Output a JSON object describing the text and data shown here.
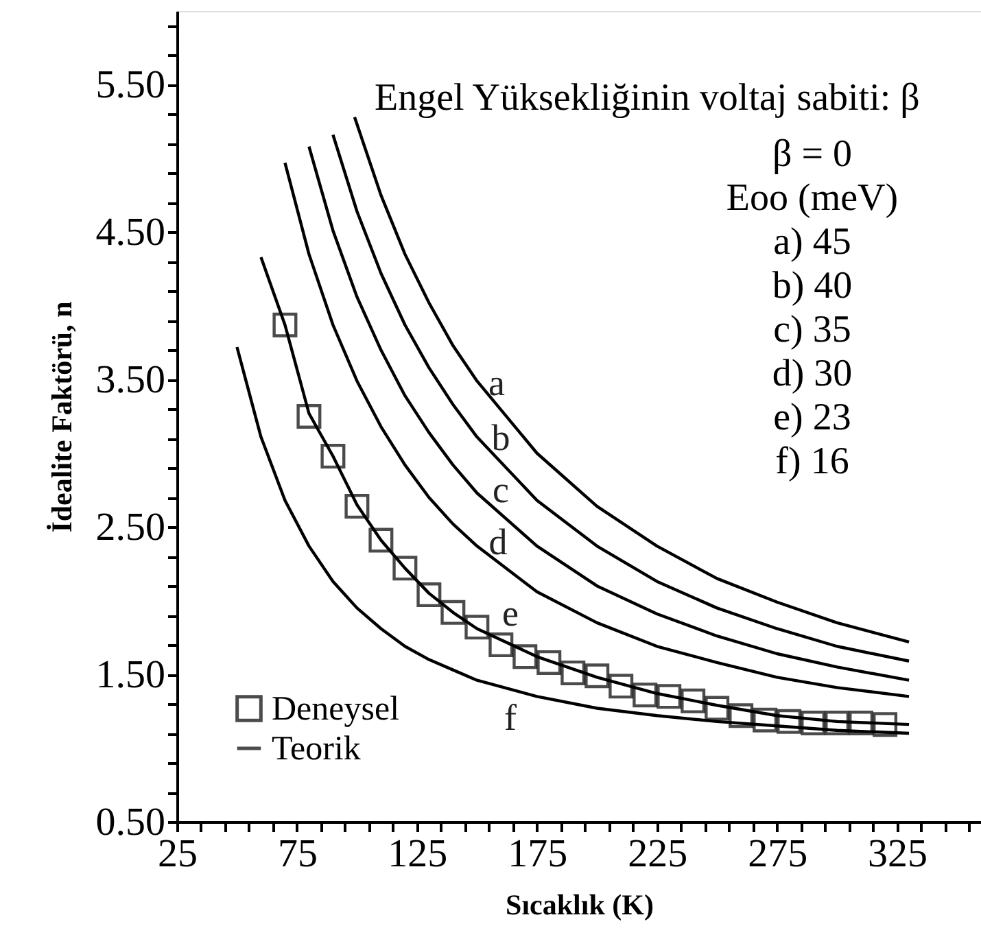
{
  "chart_data": {
    "type": "line",
    "xlabel": "Sıcaklık (K)",
    "ylabel": "İdealite Faktörü, n",
    "xlim": [
      25,
      360
    ],
    "ylim": [
      0.5,
      6.0
    ],
    "xticks": [
      25,
      {
        "value": 35,
        "label": null
      },
      {
        "value": 45,
        "label": null
      },
      {
        "value": 55,
        "label": null
      },
      {
        "value": 65,
        "label": null
      },
      75,
      {
        "value": 85,
        "label": null
      },
      {
        "value": 95,
        "label": null
      },
      {
        "value": 105,
        "label": null
      },
      {
        "value": 115,
        "label": null
      },
      125,
      {
        "value": 135,
        "label": null
      },
      {
        "value": 145,
        "label": null
      },
      {
        "value": 155,
        "label": null
      },
      {
        "value": 165,
        "label": null
      },
      175,
      {
        "value": 185,
        "label": null
      },
      {
        "value": 195,
        "label": null
      },
      {
        "value": 205,
        "label": null
      },
      {
        "value": 215,
        "label": null
      },
      225,
      {
        "value": 235,
        "label": null
      },
      {
        "value": 245,
        "label": null
      },
      {
        "value": 255,
        "label": null
      },
      {
        "value": 265,
        "label": null
      },
      275,
      {
        "value": 285,
        "label": null
      },
      {
        "value": 295,
        "label": null
      },
      {
        "value": 305,
        "label": null
      },
      {
        "value": 315,
        "label": null
      },
      325,
      {
        "value": 335,
        "label": null
      },
      {
        "value": 345,
        "label": null
      },
      {
        "value": 355,
        "label": null
      }
    ],
    "yticks": [
      {
        "value": 0.5,
        "label": "0.50"
      },
      {
        "value": 0.7,
        "label": null
      },
      {
        "value": 0.9,
        "label": null
      },
      {
        "value": 1.1,
        "label": null
      },
      {
        "value": 1.3,
        "label": null
      },
      {
        "value": 1.5,
        "label": "1.50"
      },
      {
        "value": 1.7,
        "label": null
      },
      {
        "value": 1.9,
        "label": null
      },
      {
        "value": 2.1,
        "label": null
      },
      {
        "value": 2.3,
        "label": null
      },
      {
        "value": 2.5,
        "label": "2.50"
      },
      {
        "value": 2.7,
        "label": null
      },
      {
        "value": 2.9,
        "label": null
      },
      {
        "value": 3.1,
        "label": null
      },
      {
        "value": 3.3,
        "label": null
      },
      {
        "value": 3.5,
        "label": "3.50"
      },
      {
        "value": 3.7,
        "label": null
      },
      {
        "value": 3.9,
        "label": null
      },
      {
        "value": 4.1,
        "label": null
      },
      {
        "value": 4.3,
        "label": null
      },
      {
        "value": 4.5,
        "label": "4.50"
      },
      {
        "value": 4.7,
        "label": null
      },
      {
        "value": 4.9,
        "label": null
      },
      {
        "value": 5.1,
        "label": null
      },
      {
        "value": 5.3,
        "label": null
      },
      {
        "value": 5.5,
        "label": "5.50"
      },
      {
        "value": 5.7,
        "label": null
      },
      {
        "value": 5.9,
        "label": null
      }
    ],
    "grid": false,
    "legend": "bottom left",
    "line_style": "solid",
    "series": [
      {
        "name": "Deneysel",
        "type": "scatter",
        "marker": "square",
        "color": "#000000",
        "x": [
          70,
          80,
          90,
          100,
          110,
          120,
          130,
          140,
          150,
          160,
          170,
          180,
          190,
          200,
          210,
          220,
          230,
          240,
          250,
          260,
          270,
          280,
          290,
          300,
          310,
          320
        ],
        "values": [
          3.87,
          3.25,
          2.98,
          2.64,
          2.41,
          2.22,
          2.04,
          1.92,
          1.82,
          1.7,
          1.62,
          1.58,
          1.51,
          1.49,
          1.42,
          1.36,
          1.35,
          1.32,
          1.27,
          1.22,
          1.19,
          1.18,
          1.17,
          1.17,
          1.17,
          1.16
        ]
      },
      {
        "name": "Teorik",
        "color": "#000000",
        "x": [
          99,
          110,
          120,
          130,
          140,
          150,
          175,
          200,
          225,
          250,
          275,
          300,
          330
        ],
        "values": [
          5.28,
          4.75,
          4.35,
          4.02,
          3.73,
          3.49,
          3.0,
          2.64,
          2.37,
          2.15,
          1.99,
          1.85,
          1.72
        ]
      },
      {
        "color": "#000000",
        "x": [
          90,
          100,
          110,
          120,
          130,
          140,
          150,
          175,
          200,
          225,
          250,
          275,
          300,
          330
        ],
        "values": [
          5.16,
          4.64,
          4.22,
          3.87,
          3.58,
          3.33,
          3.11,
          2.68,
          2.37,
          2.13,
          1.95,
          1.81,
          1.69,
          1.59
        ]
      },
      {
        "color": "#000000",
        "x": [
          80,
          90,
          100,
          110,
          120,
          130,
          140,
          150,
          175,
          200,
          225,
          250,
          275,
          300,
          330
        ],
        "values": [
          5.08,
          4.51,
          4.06,
          3.7,
          3.39,
          3.14,
          2.92,
          2.73,
          2.37,
          2.1,
          1.91,
          1.76,
          1.64,
          1.55,
          1.46
        ]
      },
      {
        "color": "#000000",
        "x": [
          70,
          80,
          90,
          100,
          110,
          120,
          130,
          140,
          150,
          175,
          200,
          225,
          250,
          275,
          300,
          330
        ],
        "values": [
          4.97,
          4.35,
          3.87,
          3.49,
          3.18,
          2.92,
          2.7,
          2.52,
          2.37,
          2.06,
          1.85,
          1.69,
          1.58,
          1.48,
          1.41,
          1.35
        ]
      },
      {
        "color": "#000000",
        "x": [
          60,
          70,
          80,
          90,
          100,
          110,
          120,
          130,
          140,
          150,
          175,
          200,
          225,
          250,
          275,
          300,
          330
        ],
        "values": [
          4.33,
          3.87,
          3.27,
          2.98,
          2.65,
          2.41,
          2.22,
          2.05,
          1.92,
          1.81,
          1.62,
          1.48,
          1.37,
          1.29,
          1.22,
          1.18,
          1.16
        ]
      },
      {
        "color": "#000000",
        "x": [
          50,
          60,
          70,
          80,
          90,
          100,
          110,
          120,
          130,
          140,
          150,
          175,
          200,
          225,
          250,
          275,
          300,
          330
        ],
        "values": [
          3.72,
          3.11,
          2.68,
          2.37,
          2.13,
          1.95,
          1.81,
          1.69,
          1.6,
          1.53,
          1.46,
          1.35,
          1.27,
          1.22,
          1.18,
          1.15,
          1.12,
          1.1
        ]
      }
    ],
    "annotations": [
      "Engel Yüksekliğinin voltaj sabiti: β",
      "β = 0",
      "Eoo (meV)",
      "a) 45",
      "b) 40",
      "c) 35",
      "d) 30",
      "e) 23",
      "f) 16",
      "a",
      "b",
      "c",
      "d",
      "e",
      "f"
    ]
  }
}
